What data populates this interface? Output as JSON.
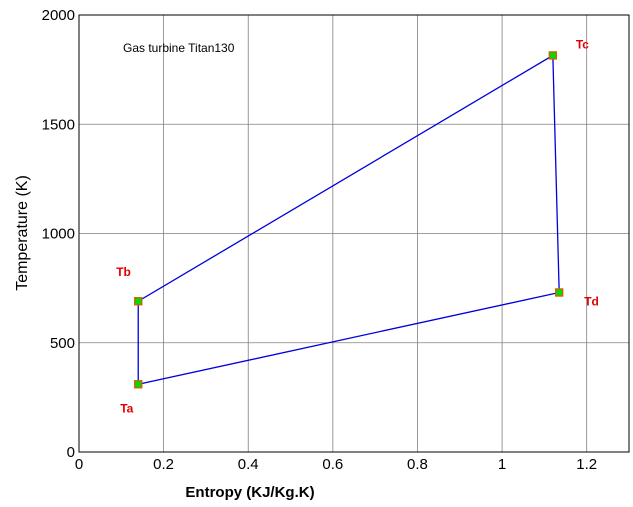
{
  "chart_data": {
    "type": "line",
    "annotation": "Gas turbine Titan130",
    "xlabel": "Entropy (KJ/Kg.K)",
    "ylabel": "Temperature (K)",
    "xlim": [
      0,
      1.3
    ],
    "ylim": [
      0,
      2000
    ],
    "xticks": [
      0,
      0.2,
      0.4,
      0.6,
      0.8,
      1,
      1.2
    ],
    "xtick_labels": [
      "0",
      "0.2",
      "0.4",
      "0.6",
      "0.8",
      "1",
      "1.2"
    ],
    "yticks": [
      0,
      500,
      1000,
      1500,
      2000
    ],
    "ytick_labels": [
      "0",
      "500",
      "1000",
      "1500",
      "2000"
    ],
    "grid": true,
    "colors": {
      "line": "#0000dd",
      "marker_fill": "#00dd00",
      "marker_edge": "#cc6600",
      "point_label": "#e00000"
    },
    "points": [
      {
        "label": "Ta",
        "x": 0.14,
        "y": 310
      },
      {
        "label": "Tb",
        "x": 0.14,
        "y": 690
      },
      {
        "label": "Tc",
        "x": 1.12,
        "y": 1815
      },
      {
        "label": "Td",
        "x": 1.135,
        "y": 730
      }
    ]
  }
}
